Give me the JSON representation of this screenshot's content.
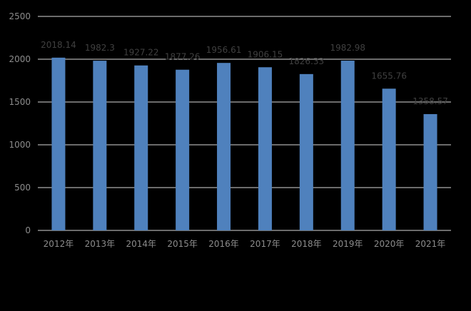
{
  "chart_data": {
    "type": "bar",
    "categories": [
      "2012年",
      "2013年",
      "2014年",
      "2015年",
      "2016年",
      "2017年",
      "2018年",
      "2019年",
      "2020年",
      "2021年"
    ],
    "values": [
      2018.14,
      1982.3,
      1927.22,
      1877.26,
      1956.61,
      1906.15,
      1826.33,
      1982.98,
      1655.76,
      1358.57
    ],
    "data_labels": [
      "2018.14",
      "1982.3",
      "1927.22",
      "1877.26",
      "1956.61",
      "1906.15",
      "1826.33",
      "1982.98",
      "1655.76",
      "1358.57"
    ],
    "ylim": [
      0,
      2500
    ],
    "yticks": [
      0,
      500,
      1000,
      1500,
      2000,
      2500
    ],
    "grid": true,
    "colors": {
      "bar": "#4f81bd",
      "background": "#000000",
      "gridline": "#d9d9d9",
      "tick_text": "#8c8c8c",
      "data_label_text": "#404040"
    }
  }
}
